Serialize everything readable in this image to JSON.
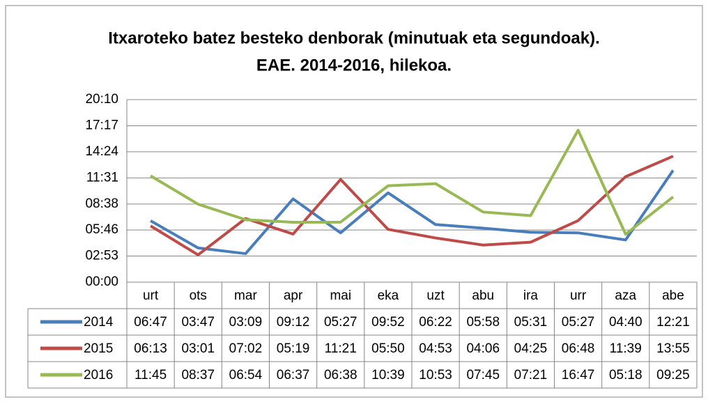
{
  "chart_data": {
    "type": "line",
    "title": "Itxaroteko batez besteko denborak (minutuak eta segundoak). EAE. 2014-2016, hilekoa.",
    "categories": [
      "urt",
      "ots",
      "mar",
      "apr",
      "mai",
      "eka",
      "uzt",
      "abu",
      "ira",
      "urr",
      "aza",
      "abe"
    ],
    "series": [
      {
        "name": "2014",
        "color": "#4a7ebb",
        "values": [
          407,
          227,
          189,
          552,
          327,
          592,
          382,
          358,
          331,
          327,
          280,
          741
        ],
        "value_labels": [
          "06:47",
          "03:47",
          "03:09",
          "09:12",
          "05:27",
          "09:52",
          "06:22",
          "05:58",
          "05:31",
          "05:27",
          "04:40",
          "12:21"
        ]
      },
      {
        "name": "2015",
        "color": "#be4b48",
        "values": [
          373,
          181,
          422,
          319,
          681,
          350,
          293,
          246,
          265,
          408,
          699,
          835
        ],
        "value_labels": [
          "06:13",
          "03:01",
          "07:02",
          "05:19",
          "11:21",
          "05:50",
          "04:53",
          "04:06",
          "04:25",
          "06:48",
          "11:39",
          "13:55"
        ]
      },
      {
        "name": "2016",
        "color": "#98b954",
        "values": [
          705,
          517,
          414,
          397,
          398,
          639,
          653,
          465,
          441,
          1007,
          318,
          565
        ],
        "value_labels": [
          "11:45",
          "08:37",
          "06:54",
          "06:37",
          "06:38",
          "10:39",
          "10:53",
          "07:45",
          "07:21",
          "16:47",
          "05:18",
          "09:25"
        ]
      }
    ],
    "ylim": [
      0,
      1210
    ],
    "yticks": [
      {
        "value": 0,
        "label": "00:00"
      },
      {
        "value": 173,
        "label": "02:53"
      },
      {
        "value": 346,
        "label": "05:46"
      },
      {
        "value": 518,
        "label": "08:38"
      },
      {
        "value": 691,
        "label": "11:31"
      },
      {
        "value": 864,
        "label": "14:24"
      },
      {
        "value": 1037,
        "label": "17:17"
      },
      {
        "value": 1210,
        "label": "20:10"
      }
    ],
    "grid": true
  }
}
